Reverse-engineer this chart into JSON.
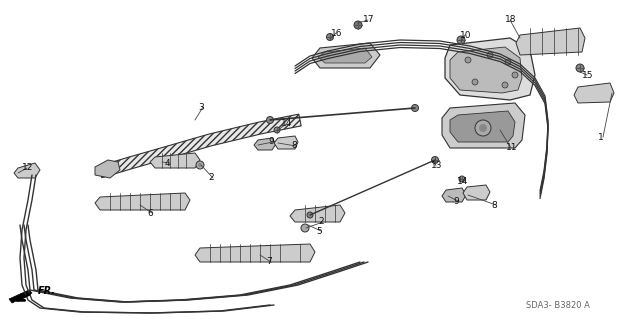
{
  "bg_color": "#ffffff",
  "line_color": "#333333",
  "text_color": "#111111",
  "diagram_code": "SDA3- B3820 A",
  "fr_label": "FR.",
  "fig_width": 6.4,
  "fig_height": 3.19,
  "labels": [
    [
      "1",
      598,
      137
    ],
    [
      "2",
      208,
      178
    ],
    [
      "2",
      318,
      222
    ],
    [
      "3",
      198,
      107
    ],
    [
      "4",
      165,
      163
    ],
    [
      "5",
      316,
      231
    ],
    [
      "6",
      147,
      213
    ],
    [
      "7",
      266,
      262
    ],
    [
      "8",
      291,
      146
    ],
    [
      "8",
      491,
      205
    ],
    [
      "9",
      268,
      142
    ],
    [
      "9",
      453,
      201
    ],
    [
      "10",
      460,
      35
    ],
    [
      "11",
      506,
      148
    ],
    [
      "12",
      22,
      168
    ],
    [
      "13",
      431,
      166
    ],
    [
      "14",
      281,
      124
    ],
    [
      "14",
      457,
      181
    ],
    [
      "15",
      582,
      75
    ],
    [
      "16",
      331,
      33
    ],
    [
      "17",
      363,
      20
    ],
    [
      "18",
      505,
      20
    ]
  ]
}
